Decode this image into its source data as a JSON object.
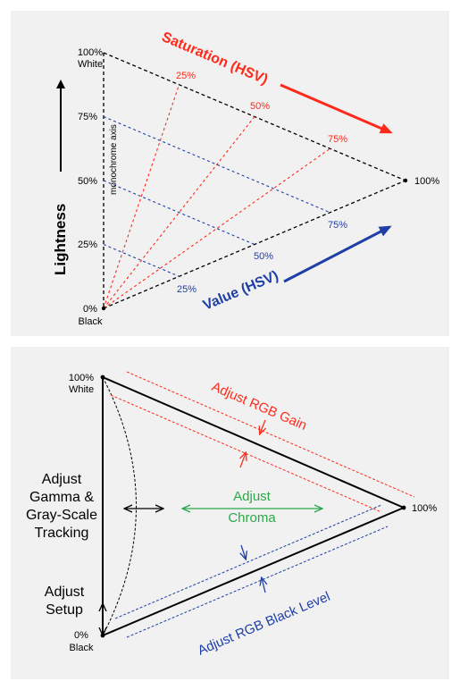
{
  "top": {
    "axis_top_pct": "100%",
    "axis_top_label": "White",
    "axis_bottom_pct": "0%",
    "axis_bottom_label": "Black",
    "tick_75": "75%",
    "tick_50": "50%",
    "tick_25": "25%",
    "monochrome_axis": "monochrome axis",
    "lightness": "Lightness",
    "saturation_title": "Saturation (HSV)",
    "value_title": "Value (HSV)",
    "sat_25": "25%",
    "sat_50": "50%",
    "sat_75": "75%",
    "val_25": "25%",
    "val_50": "50%",
    "val_75": "75%",
    "tip_pct": "100%"
  },
  "bottom": {
    "white_pct": "100%",
    "white_label": "White",
    "black_pct": "0%",
    "black_label": "Black",
    "tip_pct": "100%",
    "gain": "Adjust RGB Gain",
    "black_level": "Adjust RGB Black Level",
    "chroma_line1": "Adjust",
    "chroma_line2": "Chroma",
    "gamma_line1": "Adjust",
    "gamma_line2": "Gamma &",
    "gamma_line3": "Gray-Scale",
    "gamma_line4": "Tracking",
    "setup_line1": "Adjust",
    "setup_line2": "Setup"
  },
  "colors": {
    "red": "#ff2a1a",
    "blue": "#1f3fa6",
    "green": "#2aa84a",
    "black": "#000000",
    "panel": "#f1f1f1"
  }
}
